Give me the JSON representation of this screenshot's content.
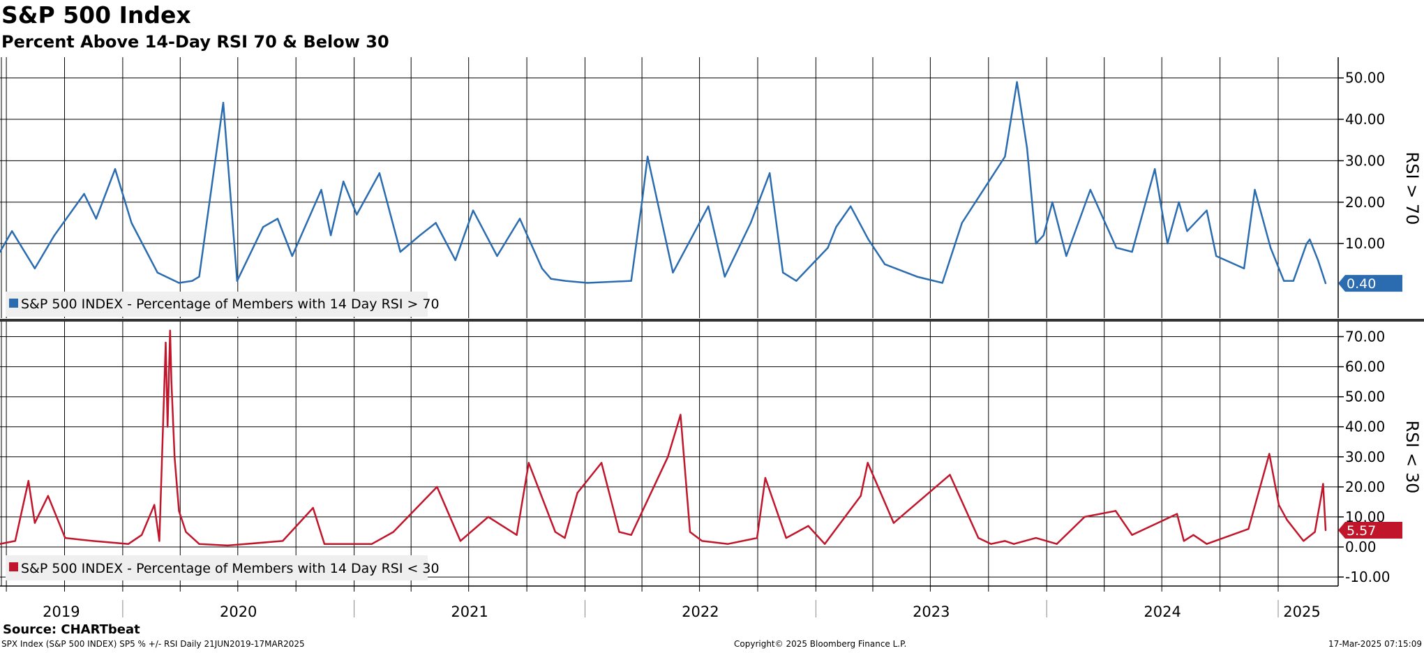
{
  "header": {
    "title": "S&P 500 Index",
    "subtitle": "Percent Above 14-Day RSI 70 & Below 30"
  },
  "footer": {
    "source": "Source: CHARTbeat",
    "ticker_info": "SPX Index (S&P 500 INDEX) SP5 % +/- RSI  Daily 21JUN2019-17MAR2025",
    "copyright": "Copyright© 2025 Bloomberg Finance L.P.",
    "timestamp": "17-Mar-2025 07:15:09"
  },
  "colors": {
    "upper_series": "#2b6cb0",
    "lower_series": "#c0152a",
    "grid": "#000000",
    "legend_bg": "#efefef"
  },
  "chart_data": [
    {
      "type": "line",
      "panel": "upper",
      "ylabel": "RSI > 70",
      "ylim": [
        -8,
        55
      ],
      "yticks": [
        50,
        40,
        30,
        20,
        10
      ],
      "ytick_labels": [
        "50.00",
        "40.00",
        "30.00",
        "20.00",
        "10.00"
      ],
      "last_value_label": "0.40",
      "legend": "S&P 500 INDEX - Percentage of Members with 14 Day RSI > 70",
      "legend_placement": "bottom-left",
      "grid": true,
      "series": [
        {
          "name": "S&P 500 INDEX - Percentage of Members with 14 Day RSI > 70",
          "x": [
            "2019-06-21",
            "2019-07-10",
            "2019-08-15",
            "2019-09-15",
            "2019-11-01",
            "2019-11-20",
            "2019-12-20",
            "2020-01-15",
            "2020-02-25",
            "2020-03-30",
            "2020-04-20",
            "2020-05-01",
            "2020-06-08",
            "2020-06-30",
            "2020-08-10",
            "2020-09-02",
            "2020-09-25",
            "2020-11-10",
            "2020-11-25",
            "2020-12-15",
            "2021-01-05",
            "2021-02-10",
            "2021-03-15",
            "2021-04-15",
            "2021-05-10",
            "2021-06-10",
            "2021-07-08",
            "2021-08-15",
            "2021-09-20",
            "2021-10-25",
            "2021-11-08",
            "2021-12-01",
            "2022-01-05",
            "2022-03-15",
            "2022-04-01",
            "2022-04-10",
            "2022-05-20",
            "2022-07-15",
            "2022-08-10",
            "2022-09-20",
            "2022-10-20",
            "2022-11-10",
            "2022-12-01",
            "2023-01-20",
            "2023-02-02",
            "2023-02-25",
            "2023-03-25",
            "2023-04-20",
            "2023-06-10",
            "2023-07-20",
            "2023-08-20",
            "2023-10-27",
            "2023-11-15",
            "2023-12-01",
            "2023-12-15",
            "2023-12-27",
            "2024-01-10",
            "2024-02-01",
            "2024-03-10",
            "2024-04-20",
            "2024-05-15",
            "2024-06-20",
            "2024-07-10",
            "2024-07-28",
            "2024-08-10",
            "2024-09-10",
            "2024-09-25",
            "2024-11-08",
            "2024-11-25",
            "2024-12-20",
            "2025-01-10",
            "2025-01-25",
            "2025-02-15",
            "2025-02-20",
            "2025-03-05",
            "2025-03-17"
          ],
          "values": [
            8,
            13,
            4,
            12,
            22,
            16,
            28,
            15,
            3,
            0.5,
            1,
            2,
            44,
            1,
            14,
            16,
            7,
            23,
            12,
            25,
            17,
            27,
            8,
            12,
            15,
            6,
            18,
            7,
            16,
            4,
            1.5,
            1,
            0.5,
            1,
            20,
            31,
            3,
            19,
            2,
            15,
            27,
            3,
            1,
            9,
            14,
            19,
            11,
            5,
            2,
            0.5,
            15,
            31,
            49,
            33,
            10,
            12,
            20,
            7,
            23,
            9,
            8,
            28,
            10,
            20,
            13,
            18,
            7,
            4,
            23,
            9,
            1,
            1,
            10,
            11,
            6,
            0.4
          ]
        }
      ]
    },
    {
      "type": "line",
      "panel": "lower",
      "ylabel": "RSI < 30",
      "ylim": [
        -13,
        75
      ],
      "yticks": [
        70,
        60,
        50,
        40,
        30,
        20,
        10,
        0,
        -10
      ],
      "ytick_labels": [
        "70.00",
        "60.00",
        "50.00",
        "40.00",
        "30.00",
        "20.00",
        "10.00",
        "0.00",
        "-10.00"
      ],
      "last_value_label": "5.57",
      "legend": "S&P 500 INDEX - Percentage of Members with 14 Day RSI < 30",
      "legend_placement": "bottom-left",
      "grid": true,
      "series": [
        {
          "name": "S&P 500 INDEX - Percentage of Members with 14 Day RSI < 30",
          "x": [
            "2019-06-21",
            "2019-07-15",
            "2019-08-05",
            "2019-08-15",
            "2019-09-05",
            "2019-10-02",
            "2019-11-15",
            "2020-01-10",
            "2020-01-31",
            "2020-02-20",
            "2020-02-28",
            "2020-03-09",
            "2020-03-12",
            "2020-03-16",
            "2020-03-18",
            "2020-03-23",
            "2020-03-30",
            "2020-04-10",
            "2020-05-01",
            "2020-06-15",
            "2020-09-10",
            "2020-10-28",
            "2020-11-15",
            "2021-01-29",
            "2021-03-04",
            "2021-05-12",
            "2021-06-18",
            "2021-08-01",
            "2021-09-15",
            "2021-10-04",
            "2021-11-15",
            "2021-11-30",
            "2021-12-20",
            "2022-01-27",
            "2022-02-24",
            "2022-03-15",
            "2022-05-12",
            "2022-06-01",
            "2022-06-16",
            "2022-07-05",
            "2022-08-15",
            "2022-09-30",
            "2022-10-13",
            "2022-11-15",
            "2022-12-20",
            "2023-01-15",
            "2023-03-13",
            "2023-03-24",
            "2023-05-04",
            "2023-08-01",
            "2023-09-15",
            "2023-10-05",
            "2023-10-27",
            "2023-11-10",
            "2023-12-15",
            "2024-01-17",
            "2024-03-01",
            "2024-04-19",
            "2024-05-15",
            "2024-07-25",
            "2024-08-05",
            "2024-08-20",
            "2024-09-10",
            "2024-11-15",
            "2024-12-18",
            "2025-01-02",
            "2025-01-15",
            "2025-02-10",
            "2025-02-28",
            "2025-03-10",
            "2025-03-13",
            "2025-03-17"
          ],
          "values": [
            1,
            2,
            22,
            8,
            17,
            3,
            2,
            1,
            4,
            14,
            2,
            68,
            40,
            72,
            55,
            30,
            12,
            5,
            1,
            0.5,
            2,
            13,
            1,
            1,
            5,
            20,
            2,
            10,
            4,
            28,
            5,
            3,
            18,
            28,
            5,
            4,
            30,
            44,
            5,
            2,
            1,
            3,
            23,
            3,
            7,
            1,
            17,
            28,
            8,
            24,
            3,
            1,
            2,
            1,
            3,
            1,
            10,
            12,
            4,
            11,
            2,
            4,
            1,
            6,
            31,
            14,
            9,
            2,
            5,
            17,
            21,
            5.57
          ]
        }
      ]
    }
  ],
  "x_axis": {
    "year_labels": [
      "2019",
      "2020",
      "2021",
      "2022",
      "2023",
      "2024",
      "2025"
    ]
  }
}
